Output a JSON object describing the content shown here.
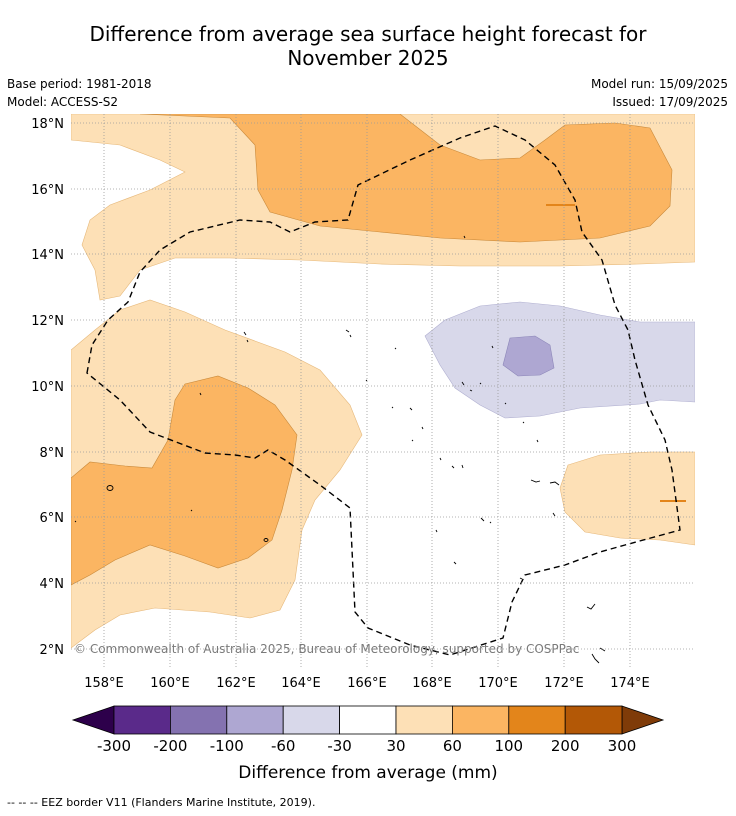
{
  "title_line1": "Difference from average sea surface height forecast for",
  "title_line2": "November 2025",
  "base_period": "Base period: 1981-2018",
  "model": "Model: ACCESS-S2",
  "model_run": "Model run: 15/09/2025",
  "issued": "Issued: 17/09/2025",
  "copyright": "© Commonwealth of Australia 2025, Bureau of Meteorology, supported by COSPPac",
  "latitudes": [
    "18°N",
    "16°N",
    "14°N",
    "12°N",
    "10°N",
    "8°N",
    "6°N",
    "4°N",
    "2°N"
  ],
  "longitudes": [
    "158°E",
    "160°E",
    "162°E",
    "164°E",
    "166°E",
    "168°E",
    "170°E",
    "172°E",
    "174°E"
  ],
  "colorbar": {
    "label": "Difference from average (mm)",
    "ticks": [
      "-300",
      "-200",
      "-100",
      "-60",
      "-30",
      "30",
      "60",
      "100",
      "200",
      "300"
    ],
    "colors": [
      "#5a2a8a",
      "#8472b0",
      "#aea7d2",
      "#d8d8ea",
      "#ffffff",
      "#fde0b6",
      "#fbb562",
      "#e3851b",
      "#b35806"
    ],
    "under_color": "#2d004b",
    "over_color": "#7f3b08"
  },
  "eez_note": "--  --  -- EEZ border V11 (Flanders Marine Institute, 2019)."
}
